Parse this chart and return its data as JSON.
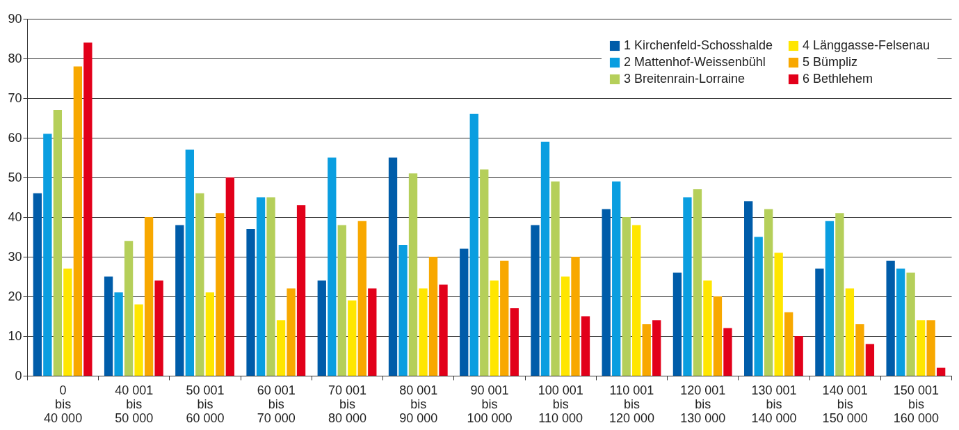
{
  "chart_data": {
    "type": "bar",
    "categories": [
      "0\nbis\n40 000",
      "40 001\nbis\n50 000",
      "50 001\nbis\n60 000",
      "60 001\nbis\n70 000",
      "70 001\nbis\n80 000",
      "80 001\nbis\n90 000",
      "90 001\nbis\n100 000",
      "100 001\nbis\n110 000",
      "110 001\nbis\n120 000",
      "120 001\nbis\n130 000",
      "130 001\nbis\n140 000",
      "140 001\nbis\n150 000",
      "150 001\nbis\n160 000"
    ],
    "series": [
      {
        "name": "1 Kirchenfeld-Schosshalde",
        "color": "#005ca9",
        "values": [
          46,
          25,
          38,
          37,
          24,
          55,
          32,
          38,
          42,
          26,
          44,
          27,
          29
        ]
      },
      {
        "name": "2 Mattenhof-Weissenbühl",
        "color": "#0a9ee0",
        "values": [
          61,
          21,
          57,
          45,
          55,
          33,
          66,
          59,
          49,
          45,
          35,
          39,
          27
        ]
      },
      {
        "name": "3 Breitenrain-Lorraine",
        "color": "#b5cf5a",
        "values": [
          67,
          34,
          46,
          45,
          38,
          51,
          52,
          49,
          40,
          47,
          42,
          41,
          26
        ]
      },
      {
        "name": "4 Länggasse-Felsenau",
        "color": "#ffe600",
        "values": [
          27,
          18,
          21,
          14,
          19,
          22,
          24,
          25,
          38,
          24,
          31,
          22,
          14
        ]
      },
      {
        "name": "5 Bümpliz",
        "color": "#f8a800",
        "values": [
          78,
          40,
          41,
          22,
          39,
          30,
          29,
          30,
          13,
          20,
          16,
          13,
          14
        ]
      },
      {
        "name": "6 Bethlehem",
        "color": "#e2001a",
        "values": [
          84,
          24,
          50,
          43,
          22,
          23,
          17,
          15,
          14,
          12,
          10,
          8,
          2
        ]
      }
    ],
    "ylim": [
      0,
      90
    ],
    "yticks": [
      0,
      10,
      20,
      30,
      40,
      50,
      60,
      70,
      80,
      90
    ],
    "grid": "y",
    "legend": "top right"
  }
}
